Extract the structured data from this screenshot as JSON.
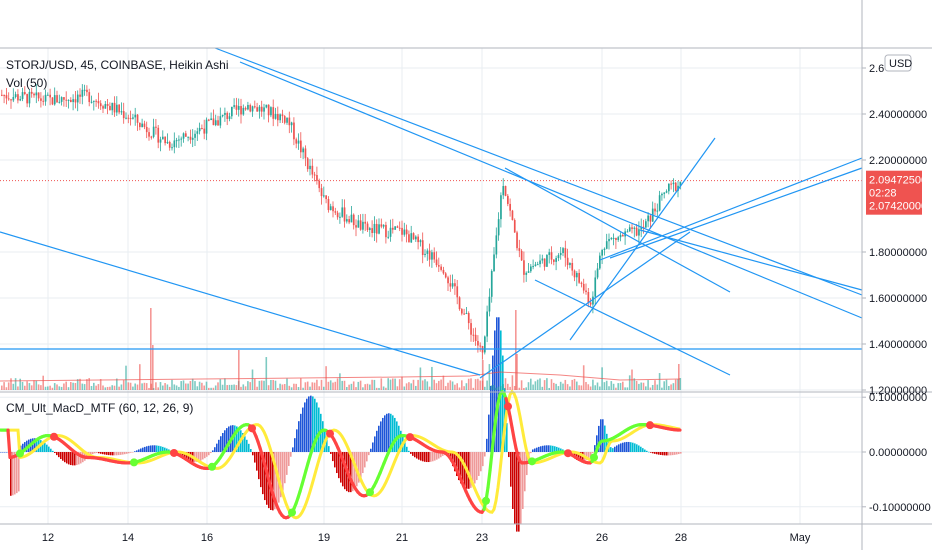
{
  "legend": {
    "symbol_line": "STORJ/USD, 45, COINBASE, Heikin Ashi",
    "volume_line": "Vol (50)",
    "macd_line": "CM_Ult_MacD_MTF (60, 12, 26, 9)"
  },
  "currency_badge": "USD",
  "price_axis": {
    "ticks": [
      "2.6",
      "2.40000000",
      "2.20000000",
      "1.80000000",
      "1.60000000",
      "1.40000000",
      "1.20000000"
    ],
    "tick_values": [
      2.6,
      2.4,
      2.2,
      1.8,
      1.6,
      1.4,
      1.2
    ],
    "labels": {
      "last_price": "2.09472500",
      "countdown": "02:28",
      "prev_price": "2.07420000"
    }
  },
  "macd_axis": {
    "ticks": [
      "0.10000000",
      "0.00000000",
      "-0.10000000"
    ],
    "tick_values": [
      0.1,
      0.0,
      -0.1
    ]
  },
  "time_axis": {
    "ticks": [
      "12",
      "14",
      "16",
      "19",
      "21",
      "23",
      "26",
      "28",
      "May"
    ]
  },
  "colors": {
    "up_candle": "#26a69a",
    "down_candle": "#ef5350",
    "trendline": "#2196f3",
    "price_line": "#ef5350",
    "macd_rising": "#66ff33",
    "macd_falling": "#ff4444",
    "signal": "#ffeb3b",
    "hist_up": "#00bcd4",
    "hist_up_strong": "#1e56d8",
    "hist_down": "#cc0000",
    "grid": "#e9edf2"
  },
  "chart_data": [
    {
      "type": "line",
      "title": "STORJ/USD, 45, COINBASE, Heikin Ashi",
      "series": [
        {
          "name": "STORJ/USD",
          "x": [
            "12",
            "13",
            "14",
            "15",
            "16",
            "17",
            "18",
            "19",
            "20",
            "21",
            "22",
            "23",
            "23.5",
            "24",
            "25",
            "25.7",
            "26",
            "27",
            "27.6",
            "28"
          ],
          "values": [
            2.45,
            2.47,
            2.38,
            2.26,
            2.34,
            2.43,
            2.37,
            2.0,
            1.88,
            1.87,
            1.72,
            1.32,
            2.1,
            1.7,
            1.78,
            1.56,
            1.82,
            1.88,
            2.05,
            2.09
          ]
        }
      ],
      "ylim": [
        1.17,
        2.65
      ],
      "last_price": 2.094725,
      "previous_close": 2.0742
    },
    {
      "type": "bar",
      "title": "Vol (50)",
      "categories": [
        "12",
        "14",
        "16",
        "19",
        "21",
        "23",
        "26",
        "28"
      ],
      "values": [
        1,
        3,
        1,
        2,
        1,
        2,
        1,
        2
      ]
    },
    {
      "type": "line",
      "title": "CM_Ult_MacD_MTF (60, 12, 26, 9)",
      "series": [
        {
          "name": "MACD",
          "x": [
            "11.5",
            "12",
            "13",
            "14",
            "15",
            "16",
            "17",
            "18",
            "19",
            "20",
            "21",
            "22",
            "23",
            "23.5",
            "24",
            "25",
            "25.7",
            "26",
            "27",
            "28"
          ],
          "values": [
            -0.01,
            0.03,
            -0.01,
            -0.02,
            0.0,
            -0.03,
            0.05,
            -0.12,
            0.04,
            -0.08,
            0.03,
            0.0,
            -0.11,
            0.11,
            -0.02,
            0.0,
            -0.02,
            0.02,
            0.05,
            0.04
          ]
        }
      ],
      "ylim": [
        -0.13,
        0.12
      ]
    }
  ]
}
